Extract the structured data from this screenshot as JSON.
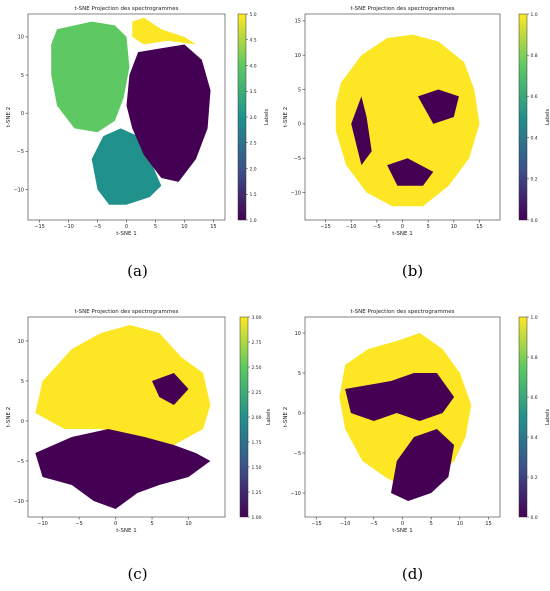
{
  "figure": {
    "captions": [
      "(a)",
      "(b)",
      "(c)",
      "(d)"
    ]
  },
  "colors": {
    "viridis_low": "#440154",
    "viridis_mid_teal": "#21918c",
    "viridis_mid_green": "#5ec962",
    "viridis_high": "#fde725"
  },
  "chart_data": [
    {
      "type": "scatter",
      "title": "t-SNE Projection des spectrogrammes",
      "xlabel": "t-SNE 1",
      "ylabel": "t-SNE 2",
      "xlim": [
        -17,
        17
      ],
      "ylim": [
        -14,
        13
      ],
      "xticks": [
        -15,
        -10,
        -5,
        0,
        5,
        10,
        15
      ],
      "yticks": [
        -10,
        -5,
        0,
        5,
        10
      ],
      "colorbar": {
        "label": "Labels",
        "min": 1.0,
        "max": 5.0,
        "ticks": [
          1.0,
          1.5,
          2.0,
          2.5,
          3.0,
          3.5,
          4.0,
          4.5,
          5.0
        ],
        "tick_labels": [
          "1.0",
          "1.5",
          "2.0",
          "2.5",
          "3.0",
          "3.5",
          "4.0",
          "4.5",
          "5.0"
        ]
      },
      "clusters": [
        {
          "label": 4,
          "polygon": [
            [
              -12,
              11
            ],
            [
              -6,
              12
            ],
            [
              -2,
              11.5
            ],
            [
              0,
              10
            ],
            [
              0.5,
              6
            ],
            [
              -0.5,
              2
            ],
            [
              -2,
              -1
            ],
            [
              -5,
              -2.5
            ],
            [
              -9,
              -2
            ],
            [
              -12,
              1
            ],
            [
              -13,
              5
            ],
            [
              -13,
              9
            ]
          ]
        },
        {
          "label": 3,
          "polygon": [
            [
              -4,
              -3
            ],
            [
              -1,
              -2
            ],
            [
              2,
              -3
            ],
            [
              4,
              -6
            ],
            [
              6,
              -9.5
            ],
            [
              4,
              -11
            ],
            [
              0,
              -12
            ],
            [
              -3,
              -12
            ],
            [
              -5,
              -10
            ],
            [
              -6,
              -6
            ]
          ]
        },
        {
          "label": 1,
          "polygon": [
            [
              2,
              8
            ],
            [
              6,
              8.5
            ],
            [
              10,
              9
            ],
            [
              13,
              7
            ],
            [
              14.5,
              3
            ],
            [
              14,
              -2
            ],
            [
              12,
              -6
            ],
            [
              9,
              -9
            ],
            [
              6,
              -8.5
            ],
            [
              3,
              -5.5
            ],
            [
              1,
              -2
            ],
            [
              0,
              1
            ],
            [
              0.5,
              5
            ]
          ]
        },
        {
          "label": 5,
          "polygon": [
            [
              1,
              12
            ],
            [
              3,
              12.5
            ],
            [
              6,
              11
            ],
            [
              10,
              10
            ],
            [
              12,
              9
            ],
            [
              7,
              9.5
            ],
            [
              3,
              9
            ],
            [
              1,
              10
            ]
          ]
        }
      ]
    },
    {
      "type": "scatter",
      "title": "t-SNE Projection des spectrogrammes",
      "xlabel": "t-SNE 1",
      "ylabel": "t-SNE 2",
      "xlim": [
        -19,
        19
      ],
      "ylim": [
        -14,
        16
      ],
      "xticks": [
        -15,
        -10,
        -5,
        0,
        5,
        10,
        15
      ],
      "yticks": [
        -10,
        -5,
        0,
        5,
        10,
        15
      ],
      "colorbar": {
        "label": "Labels",
        "min": 0.0,
        "max": 1.0,
        "ticks": [
          0.0,
          0.2,
          0.4,
          0.6,
          0.8,
          1.0
        ],
        "tick_labels": [
          "0.0",
          "0.2",
          "0.4",
          "0.6",
          "0.8",
          "1.0"
        ]
      },
      "clusters": [
        {
          "label": 1,
          "polygon": [
            [
              -12,
              6
            ],
            [
              -8,
              10
            ],
            [
              -3,
              12.5
            ],
            [
              2,
              13
            ],
            [
              7,
              12
            ],
            [
              12,
              9
            ],
            [
              14,
              5
            ],
            [
              15,
              0
            ],
            [
              13,
              -5
            ],
            [
              9,
              -9
            ],
            [
              4,
              -12
            ],
            [
              -2,
              -12
            ],
            [
              -7,
              -10
            ],
            [
              -11,
              -6
            ],
            [
              -13,
              -1
            ],
            [
              -13,
              3
            ]
          ]
        },
        {
          "label": 0,
          "polygon": [
            [
              -10,
              0
            ],
            [
              -8,
              4
            ],
            [
              -7,
              1
            ],
            [
              -6,
              -4
            ],
            [
              -8,
              -6
            ]
          ]
        },
        {
          "label": 0,
          "polygon": [
            [
              3,
              4
            ],
            [
              7,
              5
            ],
            [
              11,
              4
            ],
            [
              10,
              1
            ],
            [
              6,
              0
            ]
          ]
        },
        {
          "label": 0,
          "polygon": [
            [
              -3,
              -6
            ],
            [
              1,
              -5
            ],
            [
              6,
              -7
            ],
            [
              4,
              -9
            ],
            [
              -1,
              -9
            ]
          ]
        }
      ]
    },
    {
      "type": "scatter",
      "title": "t-SNE Projection des spectrogrammes",
      "xlabel": "t-SNE 1",
      "ylabel": "t-SNE 2",
      "xlim": [
        -12,
        15
      ],
      "ylim": [
        -12,
        13
      ],
      "xticks": [
        -10,
        -5,
        0,
        5,
        10
      ],
      "yticks": [
        -10,
        -5,
        0,
        5,
        10
      ],
      "colorbar": {
        "label": "Labels",
        "min": 1.0,
        "max": 3.0,
        "ticks": [
          1.0,
          1.25,
          1.5,
          1.75,
          2.0,
          2.25,
          2.5,
          2.75,
          3.0
        ],
        "tick_labels": [
          "1.00",
          "1.25",
          "1.50",
          "1.75",
          "2.00",
          "2.25",
          "2.50",
          "2.75",
          "3.00"
        ]
      },
      "clusters": [
        {
          "label": 3,
          "polygon": [
            [
              -10,
              5
            ],
            [
              -6,
              9
            ],
            [
              -2,
              11
            ],
            [
              2,
              12
            ],
            [
              6,
              11
            ],
            [
              9,
              8
            ],
            [
              12,
              6
            ],
            [
              13,
              2
            ],
            [
              12,
              -1
            ],
            [
              8,
              -3
            ],
            [
              3,
              -2
            ],
            [
              -2,
              -1
            ],
            [
              -7,
              -1
            ],
            [
              -11,
              1
            ]
          ]
        },
        {
          "label": 1,
          "polygon": [
            [
              -11,
              -4
            ],
            [
              -6,
              -2
            ],
            [
              -1,
              -1
            ],
            [
              4,
              -2
            ],
            [
              8,
              -3
            ],
            [
              11,
              -4
            ],
            [
              13,
              -5
            ],
            [
              10,
              -7
            ],
            [
              6,
              -8
            ],
            [
              3,
              -9
            ],
            [
              0,
              -11
            ],
            [
              -3,
              -10
            ],
            [
              -6,
              -8
            ],
            [
              -10,
              -7
            ]
          ]
        },
        {
          "label": 1,
          "polygon": [
            [
              5,
              5
            ],
            [
              8,
              6
            ],
            [
              10,
              4
            ],
            [
              8,
              2
            ],
            [
              6,
              3
            ]
          ]
        }
      ]
    },
    {
      "type": "scatter",
      "title": "t-SNE Projection des spectrogrammes",
      "xlabel": "t-SNE 1",
      "ylabel": "t-SNE 2",
      "xlim": [
        -17,
        17
      ],
      "ylim": [
        -13,
        12
      ],
      "xticks": [
        -15,
        -10,
        -5,
        0,
        5,
        10,
        15
      ],
      "yticks": [
        -10,
        -5,
        0,
        5,
        10
      ],
      "colorbar": {
        "label": "Labels",
        "min": 0.0,
        "max": 1.0,
        "ticks": [
          0.0,
          0.2,
          0.4,
          0.6,
          0.8,
          1.0
        ],
        "tick_labels": [
          "0.0",
          "0.2",
          "0.4",
          "0.6",
          "0.8",
          "1.0"
        ]
      },
      "clusters": [
        {
          "label": 1,
          "polygon": [
            [
              -10,
              6
            ],
            [
              -6,
              8
            ],
            [
              -1,
              9
            ],
            [
              3,
              10
            ],
            [
              7,
              8
            ],
            [
              10,
              5
            ],
            [
              12,
              1
            ],
            [
              11,
              -3
            ],
            [
              9,
              -6
            ],
            [
              6,
              -8
            ],
            [
              2,
              -10
            ],
            [
              -3,
              -8
            ],
            [
              -7,
              -6
            ],
            [
              -10,
              -2
            ],
            [
              -11,
              2
            ]
          ]
        },
        {
          "label": 0,
          "polygon": [
            [
              -10,
              3
            ],
            [
              -6,
              3.5
            ],
            [
              -2,
              4
            ],
            [
              2,
              5
            ],
            [
              6,
              5
            ],
            [
              9,
              2
            ],
            [
              7,
              0
            ],
            [
              3,
              -1
            ],
            [
              -1,
              0
            ],
            [
              -5,
              -1
            ],
            [
              -9,
              0
            ]
          ]
        },
        {
          "label": 0,
          "polygon": [
            [
              -1,
              -6
            ],
            [
              2,
              -3
            ],
            [
              6,
              -2
            ],
            [
              9,
              -4
            ],
            [
              8,
              -8
            ],
            [
              5,
              -10
            ],
            [
              1,
              -11
            ],
            [
              -2,
              -10
            ]
          ]
        }
      ]
    }
  ]
}
